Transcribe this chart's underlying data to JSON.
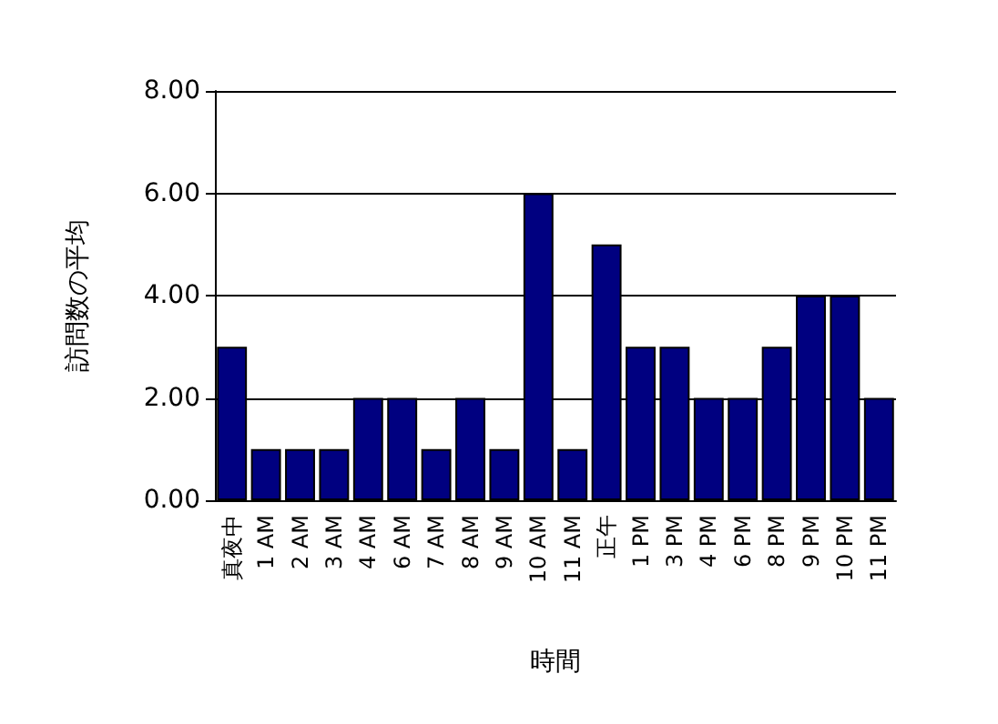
{
  "chart_data": {
    "type": "bar",
    "xlabel": "時間",
    "ylabel": "訪問数の平均",
    "categories": [
      "真夜中",
      "1 AM",
      "2 AM",
      "3 AM",
      "4 AM",
      "6 AM",
      "7 AM",
      "8 AM",
      "9 AM",
      "10 AM",
      "11 AM",
      "正午",
      "1 PM",
      "3 PM",
      "4 PM",
      "6 PM",
      "8 PM",
      "9 PM",
      "10 PM",
      "11 PM"
    ],
    "values": [
      3,
      1,
      1,
      1,
      2,
      2,
      1,
      2,
      1,
      6,
      1,
      5,
      3,
      3,
      2,
      2,
      3,
      4,
      4,
      2
    ],
    "color": "#000080",
    "ylim": [
      0,
      8
    ],
    "yticks": [
      {
        "value": 0,
        "label": "0.00"
      },
      {
        "value": 2,
        "label": "2.00"
      },
      {
        "value": 4,
        "label": "4.00"
      },
      {
        "value": 6,
        "label": "6.00"
      },
      {
        "value": 8,
        "label": "8.00"
      }
    ],
    "grid": "y"
  }
}
